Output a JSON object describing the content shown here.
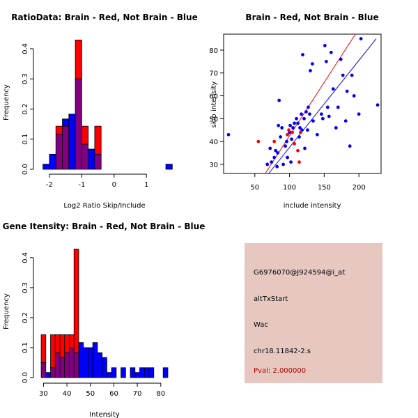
{
  "chart_data": [
    {
      "id": "ratio",
      "type": "histogram",
      "title": "RatioData: Brain - Red, Not Brain - Blue",
      "xlabel": "Log2 Ratio Skip/Include",
      "ylabel": "Frequency",
      "xlim": [
        -2.3,
        1.75
      ],
      "ylim": [
        0,
        0.43
      ],
      "xticks": [
        -2,
        -1,
        0,
        1
      ],
      "yticks": [
        0.0,
        0.1,
        0.2,
        0.3,
        0.4
      ],
      "bin_width": 0.2,
      "series": [
        {
          "name": "Brain",
          "color": "#ff0000",
          "bins": [
            {
              "x0": -1.8,
              "y": 0.143
            },
            {
              "x0": -1.6,
              "y": 0.143
            },
            {
              "x0": -1.2,
              "y": 0.429
            },
            {
              "x0": -1.0,
              "y": 0.143
            },
            {
              "x0": -0.6,
              "y": 0.143
            }
          ]
        },
        {
          "name": "Not Brain",
          "color": "#0000ff",
          "bins": [
            {
              "x0": -2.2,
              "y": 0.017
            },
            {
              "x0": -2.0,
              "y": 0.05
            },
            {
              "x0": -1.8,
              "y": 0.117
            },
            {
              "x0": -1.6,
              "y": 0.167
            },
            {
              "x0": -1.4,
              "y": 0.183
            },
            {
              "x0": -1.2,
              "y": 0.3
            },
            {
              "x0": -1.0,
              "y": 0.083
            },
            {
              "x0": -0.8,
              "y": 0.067
            },
            {
              "x0": -0.6,
              "y": 0.05
            },
            {
              "x0": 1.6,
              "y": 0.017
            }
          ]
        }
      ]
    },
    {
      "id": "scatter",
      "type": "scatter",
      "title": "Brain - Red, Not Brain - Blue",
      "xlabel": "include intensity",
      "ylabel": "skip intensity",
      "xlim": [
        5,
        232
      ],
      "ylim": [
        26,
        87
      ],
      "xticks": [
        50,
        100,
        150,
        200
      ],
      "yticks": [
        30,
        40,
        50,
        60,
        70,
        80
      ],
      "series": [
        {
          "name": "Brain",
          "color": "#ff0000",
          "points": [
            [
              55,
              40
            ],
            [
              78,
              40
            ],
            [
              97,
              43
            ],
            [
              99,
              45
            ],
            [
              104,
              44
            ],
            [
              107,
              39
            ],
            [
              112,
              36
            ],
            [
              114,
              31
            ],
            [
              116,
              44
            ]
          ],
          "fit_line": [
            [
              65,
              26
            ],
            [
              195,
              87
            ]
          ]
        },
        {
          "name": "Not Brain",
          "color": "#0000ff",
          "points": [
            [
              12,
              43
            ],
            [
              68,
              30
            ],
            [
              72,
              37
            ],
            [
              74,
              31
            ],
            [
              78,
              33
            ],
            [
              82,
              29
            ],
            [
              84,
              47
            ],
            [
              83,
              35
            ],
            [
              85,
              58
            ],
            [
              87,
              42
            ],
            [
              89,
              46
            ],
            [
              91,
              30
            ],
            [
              94,
              38
            ],
            [
              96,
              40
            ],
            [
              97,
              33
            ],
            [
              100,
              44
            ],
            [
              101,
              47
            ],
            [
              103,
              41
            ],
            [
              105,
              46
            ],
            [
              107,
              48
            ],
            [
              110,
              50
            ],
            [
              112,
              48
            ],
            [
              114,
              42
            ],
            [
              115,
              46
            ],
            [
              117,
              52
            ],
            [
              118,
              45
            ],
            [
              119,
              78
            ],
            [
              121,
              50
            ],
            [
              122,
              37
            ],
            [
              124,
              53
            ],
            [
              126,
              45
            ],
            [
              127,
              55
            ],
            [
              129,
              52
            ],
            [
              130,
              71
            ],
            [
              133,
              74
            ],
            [
              134,
              49
            ],
            [
              140,
              43
            ],
            [
              146,
              52
            ],
            [
              148,
              50
            ],
            [
              151,
              82
            ],
            [
              153,
              75
            ],
            [
              155,
              55
            ],
            [
              157,
              51
            ],
            [
              160,
              79
            ],
            [
              163,
              63
            ],
            [
              167,
              46
            ],
            [
              170,
              55
            ],
            [
              174,
              76
            ],
            [
              177,
              69
            ],
            [
              181,
              49
            ],
            [
              183,
              62
            ],
            [
              187,
              38
            ],
            [
              190,
              69
            ],
            [
              193,
              60
            ],
            [
              200,
              52
            ],
            [
              203,
              85
            ],
            [
              227,
              56
            ],
            [
              80,
              36
            ],
            [
              102,
              31
            ]
          ],
          "fit_line": [
            [
              70,
              26
            ],
            [
              225,
              85
            ]
          ]
        }
      ]
    },
    {
      "id": "intensity",
      "type": "histogram",
      "title": "Gene Itensity: Brain - Red, Not Brain - Blue",
      "xlabel": "Intensity",
      "ylabel": "Frequency",
      "xlim": [
        27.5,
        84.5
      ],
      "ylim": [
        0,
        0.43
      ],
      "xticks": [
        30,
        40,
        50,
        60,
        70,
        80
      ],
      "yticks": [
        0.0,
        0.1,
        0.2,
        0.3,
        0.4
      ],
      "bin_width": 2,
      "series": [
        {
          "name": "Brain",
          "color": "#ff0000",
          "bins": [
            {
              "x0": 29,
              "y": 0.143
            },
            {
              "x0": 33,
              "y": 0.143
            },
            {
              "x0": 35,
              "y": 0.143
            },
            {
              "x0": 37,
              "y": 0.143
            },
            {
              "x0": 39,
              "y": 0.143
            },
            {
              "x0": 41,
              "y": 0.143
            },
            {
              "x0": 43,
              "y": 0.429
            }
          ]
        },
        {
          "name": "Not Brain",
          "color": "#0000ff",
          "bins": [
            {
              "x0": 29,
              "y": 0.05
            },
            {
              "x0": 31,
              "y": 0.017
            },
            {
              "x0": 33,
              "y": 0.033
            },
            {
              "x0": 35,
              "y": 0.083
            },
            {
              "x0": 37,
              "y": 0.067
            },
            {
              "x0": 39,
              "y": 0.083
            },
            {
              "x0": 41,
              "y": 0.1
            },
            {
              "x0": 43,
              "y": 0.083
            },
            {
              "x0": 45,
              "y": 0.117
            },
            {
              "x0": 47,
              "y": 0.1
            },
            {
              "x0": 49,
              "y": 0.1
            },
            {
              "x0": 51,
              "y": 0.117
            },
            {
              "x0": 53,
              "y": 0.083
            },
            {
              "x0": 55,
              "y": 0.067
            },
            {
              "x0": 57,
              "y": 0.017
            },
            {
              "x0": 59,
              "y": 0.033
            },
            {
              "x0": 63,
              "y": 0.033
            },
            {
              "x0": 67,
              "y": 0.033
            },
            {
              "x0": 69,
              "y": 0.017
            },
            {
              "x0": 71,
              "y": 0.033
            },
            {
              "x0": 73,
              "y": 0.033
            },
            {
              "x0": 75,
              "y": 0.033
            },
            {
              "x0": 81,
              "y": 0.033
            }
          ]
        }
      ]
    }
  ],
  "info_panel": {
    "probe_id": "G6976070@J924594@i_at",
    "event_type": "altTxStart",
    "gene": "Wac",
    "location": "chr18.11842-2.s",
    "pval": "Pval: 2.000000",
    "background_color": "#e6c8c0",
    "pval_color": "#b00000"
  },
  "colors": {
    "brain": "#ff0000",
    "not_brain": "#0000ff",
    "overlap": "#800080"
  }
}
